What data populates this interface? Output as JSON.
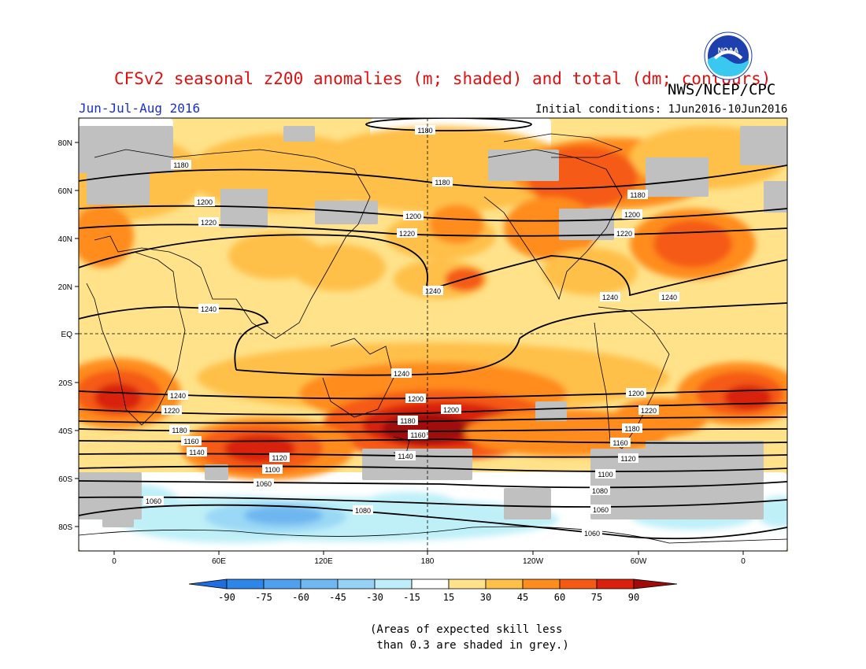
{
  "header": {
    "title": "CFSv2 seasonal z200 anomalies (m; shaded) and total (dm; contours)",
    "agency": "NWS/NCEP/CPC",
    "season": "Jun-Jul-Aug 2016",
    "initial_conditions": "Initial conditions: 1Jun2016-10Jun2016",
    "logo_text": "NOAA"
  },
  "map": {
    "lat_labels": [
      "80N",
      "60N",
      "40N",
      "20N",
      "EQ",
      "20S",
      "40S",
      "60S",
      "80S"
    ],
    "lon_labels": [
      "0",
      "60E",
      "120E",
      "180",
      "120W",
      "60W",
      "0"
    ],
    "contour_labels": [
      "1180",
      "1180",
      "1180",
      "1180",
      "1200",
      "1200",
      "1200",
      "1220",
      "1220",
      "1240",
      "1240",
      "1240",
      "1240",
      "1240",
      "1240",
      "1220",
      "1220",
      "1220",
      "1200",
      "1200",
      "1200",
      "1180",
      "1180",
      "1180",
      "1160",
      "1160",
      "1160",
      "1140",
      "1140",
      "1120",
      "1120",
      "1100",
      "1100",
      "1080",
      "1060",
      "1060",
      "1060",
      "1080",
      "1060"
    ],
    "colors": {
      "neutral": "#ffffff",
      "pos15": "#ffe28a",
      "pos30": "#ffc04a",
      "pos45": "#ff8c1f",
      "pos60": "#f55a14",
      "pos75": "#d8200c",
      "pos90": "#a00a0a",
      "neg15": "#bff0f8",
      "neg30": "#9ad8f5",
      "neg45": "#6eb6f0",
      "low_skill": "#c0c0c0"
    }
  },
  "colorbar": {
    "tick_labels": [
      "-90",
      "-75",
      "-60",
      "-45",
      "-30",
      "-15",
      "15",
      "30",
      "45",
      "60",
      "75",
      "90"
    ],
    "colors": [
      "#1e6ee0",
      "#2e86e8",
      "#4fa0ee",
      "#70b8f2",
      "#96d2f6",
      "#bdeefa",
      "#ffffff",
      "#ffe28a",
      "#ffc04a",
      "#ff8c1f",
      "#f55a14",
      "#d8200c",
      "#a00a0a"
    ]
  },
  "footnote": {
    "line1": "(Areas of expected skill less",
    "line2": " than 0.3 are shaded in grey.)"
  }
}
